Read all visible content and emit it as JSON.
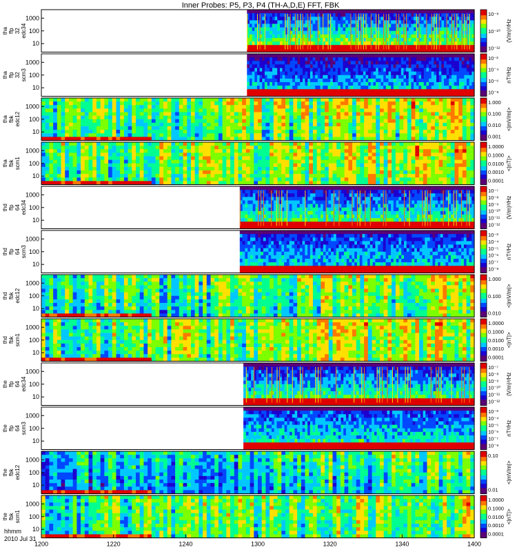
{
  "chart_data": {
    "type": "heatmap",
    "title": "Inner Probes: P5, P3, P4 (TH-A,D,E) FFT, FBK",
    "x_axis": {
      "label_line1": "hhmm",
      "label_line2": "2010 Jul 31",
      "ticks": [
        "1200",
        "1220",
        "1240",
        "1300",
        "1320",
        "1340",
        "1400"
      ],
      "range": [
        "12:00",
        "14:00"
      ]
    },
    "colormap": [
      "#5b0076",
      "#1c00d0",
      "#0048ff",
      "#00c8ff",
      "#00ff90",
      "#7cff00",
      "#ffe000",
      "#ff7800",
      "#e00000"
    ],
    "panels": [
      {
        "id": "tha-ffp32-edc34",
        "ylabel": [
          "tha",
          "ffp",
          "32",
          "edc34"
        ],
        "yticks": [
          "1000",
          "100",
          "10"
        ],
        "cbar_label": "(V/m)²/Hz",
        "cbar_ticks": [
          "10⁻⁸",
          "10⁻¹⁰",
          "10⁻¹²"
        ],
        "kind": "ffp",
        "data_start": "12:57",
        "bg": 0.16,
        "hf": 0.7,
        "spikes": true
      },
      {
        "id": "tha-ffp32-scm3",
        "ylabel": [
          "tha",
          "ffp",
          "32",
          "scm3"
        ],
        "yticks": [
          "1000",
          "100",
          "10"
        ],
        "cbar_label": "nT²/Hz",
        "cbar_ticks": [
          "10⁻²",
          "10⁻⁴",
          "10⁻⁶",
          "10⁻⁸"
        ],
        "kind": "ffp",
        "data_start": "12:57",
        "bg": 0.12,
        "hf": 0.45,
        "spikes": false
      },
      {
        "id": "tha-fbk-edc12",
        "ylabel": [
          "tha",
          "fbk",
          "edc12"
        ],
        "yticks": [
          "1000",
          "100",
          "10"
        ],
        "cbar_label": "<|mV/m|>",
        "cbar_ticks": [
          "1.000",
          "0.100",
          "0.010",
          "0.001"
        ],
        "kind": "fbk",
        "bg": 0.45,
        "hf": 0.65
      },
      {
        "id": "tha-fbk-scm1",
        "ylabel": [
          "tha",
          "fbk",
          "scm1"
        ],
        "yticks": [
          "1000",
          "100",
          "10"
        ],
        "cbar_label": "<|nT|>",
        "cbar_ticks": [
          "1.0000",
          "0.1000",
          "0.0100",
          "0.0010",
          "0.0001"
        ],
        "kind": "fbk",
        "bg": 0.5,
        "hf": 0.6
      },
      {
        "id": "thd-ffp64-edc34",
        "ylabel": [
          "thd",
          "ffp",
          "64",
          "edc34"
        ],
        "yticks": [
          "1000",
          "100",
          "10"
        ],
        "cbar_label": "(V/m)²/Hz",
        "cbar_ticks": [
          "10⁻⁷",
          "10⁻⁸",
          "10⁻⁹",
          "10⁻¹⁰",
          "10⁻¹¹",
          "10⁻¹²"
        ],
        "kind": "ffp",
        "data_start": "12:55",
        "bg": 0.16,
        "hf": 0.6,
        "spikes": true
      },
      {
        "id": "thd-ffp64-scm3",
        "ylabel": [
          "thd",
          "ffp",
          "64",
          "scm3"
        ],
        "yticks": [
          "1000",
          "100",
          "10"
        ],
        "cbar_label": "nT²/Hz",
        "cbar_ticks": [
          "10⁻³",
          "10⁻⁴",
          "10⁻⁵",
          "10⁻⁶",
          "10⁻⁷",
          "10⁻⁸"
        ],
        "kind": "ffp",
        "data_start": "12:55",
        "bg": 0.2,
        "hf": 0.45,
        "spikes": false
      },
      {
        "id": "thd-fbk-edc12",
        "ylabel": [
          "thd",
          "fbk",
          "edc12"
        ],
        "yticks": [
          "1000",
          "100",
          "10"
        ],
        "cbar_label": "<|mV/m|>",
        "cbar_ticks": [
          "1.000",
          "0.100",
          "0.010"
        ],
        "kind": "fbk",
        "bg": 0.4,
        "hf": 0.6
      },
      {
        "id": "thd-fbk-scm1",
        "ylabel": [
          "thd",
          "fbk",
          "scm1"
        ],
        "yticks": [
          "1000",
          "100",
          "10"
        ],
        "cbar_label": "<|nT|>",
        "cbar_ticks": [
          "1.0000",
          "0.1000",
          "0.0100",
          "0.0010",
          "0.0001"
        ],
        "kind": "fbk",
        "bg": 0.48,
        "hf": 0.6
      },
      {
        "id": "the-ffp64-edc34",
        "ylabel": [
          "the",
          "ffp",
          "64",
          "edc34"
        ],
        "yticks": [
          "1000",
          "100",
          "10"
        ],
        "cbar_label": "(V/m)²/Hz",
        "cbar_ticks": [
          "10⁻⁷",
          "10⁻⁸",
          "10⁻⁹",
          "10⁻¹⁰",
          "10⁻¹¹",
          "10⁻¹²"
        ],
        "kind": "ffp",
        "data_start": "12:56",
        "bg": 0.16,
        "hf": 0.6,
        "spikes": true
      },
      {
        "id": "the-ffp64-scm3",
        "ylabel": [
          "the",
          "ffp",
          "64",
          "scm3"
        ],
        "yticks": [
          "1000",
          "100",
          "10"
        ],
        "cbar_label": "nT²/Hz",
        "cbar_ticks": [
          "10⁻³",
          "10⁻⁴",
          "10⁻⁵",
          "10⁻⁶",
          "10⁻⁷",
          "10⁻⁸"
        ],
        "kind": "ffp",
        "data_start": "12:56",
        "bg": 0.22,
        "hf": 0.5,
        "spikes": false
      },
      {
        "id": "the-fbk-edc12",
        "ylabel": [
          "the",
          "fbk",
          "edc12"
        ],
        "yticks": [
          "1000",
          "100",
          "10"
        ],
        "cbar_label": "<|mV/m|>",
        "cbar_ticks": [
          "0.10",
          "0.01"
        ],
        "kind": "fbk",
        "bg": 0.3,
        "hf": 0.55
      },
      {
        "id": "the-fbk-scm1",
        "ylabel": [
          "the",
          "fbk",
          "scm1"
        ],
        "yticks": [
          "1000",
          "100",
          "10"
        ],
        "cbar_label": "<|nT|>",
        "cbar_ticks": [
          "1.0000",
          "0.1000",
          "0.0100",
          "0.0010",
          "0.0001"
        ],
        "kind": "fbk",
        "bg": 0.45,
        "hf": 0.55
      }
    ]
  }
}
